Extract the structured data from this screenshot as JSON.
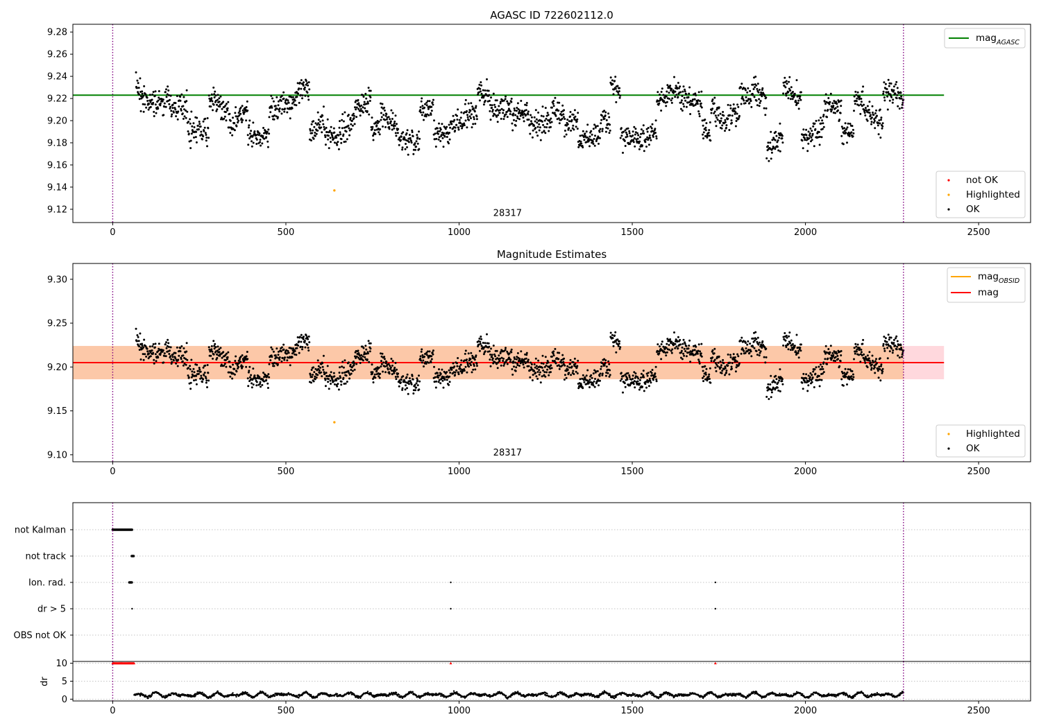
{
  "figure": {
    "background": "#ffffff"
  },
  "colors": {
    "ok": "#000000",
    "highlighted": "#ffa500",
    "not_ok": "#ff0000",
    "agasc_line": "#008000",
    "mag_line": "#ff0000",
    "obsid_line": "#ffa500",
    "band_outer": "#ffd8dd",
    "band_inner": "#fcc8a8",
    "vline": "#800080",
    "grid": "#b0b0b0"
  },
  "chart_data": [
    {
      "id": "agasc",
      "type": "scatter",
      "title": "AGASC ID 722602112.0",
      "xlim": [
        -115,
        2650
      ],
      "ylim": [
        9.108,
        9.287
      ],
      "xticks": [
        0,
        500,
        1000,
        1500,
        2000,
        2500
      ],
      "yticks": [
        "9.12",
        "9.14",
        "9.16",
        "9.18",
        "9.20",
        "9.22",
        "9.24",
        "9.26",
        "9.28"
      ],
      "obsid_label": {
        "text": "28317",
        "x": 1140,
        "y": 9.114
      },
      "vlines": [
        0,
        2283
      ],
      "hline": {
        "name": "mag_AGASC",
        "y": 9.223,
        "x_range": [
          -115,
          2400
        ]
      },
      "ok_series": {
        "name": "OK",
        "x_range": [
          67,
          2283
        ],
        "count": 2050,
        "mean": 9.204
      },
      "highlighted": [
        {
          "x": 640,
          "y": 9.137
        }
      ],
      "not_ok": [],
      "legend_lines": [
        {
          "label": "mag",
          "sub": "AGASC",
          "color": "#008000"
        }
      ],
      "legend_points": [
        {
          "label": "not OK",
          "color": "#ff0000"
        },
        {
          "label": "Highlighted",
          "color": "#ffa500"
        },
        {
          "label": "OK",
          "color": "#000000"
        }
      ]
    },
    {
      "id": "estimates",
      "type": "scatter",
      "title": "Magnitude Estimates",
      "xlim": [
        -115,
        2650
      ],
      "ylim": [
        9.092,
        9.318
      ],
      "xticks": [
        0,
        500,
        1000,
        1500,
        2000,
        2500
      ],
      "yticks": [
        "9.10",
        "9.15",
        "9.20",
        "9.25",
        "9.30"
      ],
      "obsid_label": {
        "text": "28317",
        "x": 1140,
        "y": 9.099
      },
      "vlines": [
        0,
        2283
      ],
      "mag": {
        "name": "mag",
        "y": 9.205
      },
      "band_outer": [
        9.186,
        9.224
      ],
      "band_inner": [
        9.186,
        9.224
      ],
      "band_x_range": [
        -115,
        2400
      ],
      "highlighted": [
        {
          "x": 640,
          "y": 9.137
        }
      ],
      "legend_lines": [
        {
          "label": "mag",
          "sub": "OBSID",
          "color": "#ffa500"
        },
        {
          "label": "mag",
          "sub": "",
          "color": "#ff0000"
        }
      ],
      "legend_points": [
        {
          "label": "Highlighted",
          "color": "#ffa500"
        },
        {
          "label": "OK",
          "color": "#000000"
        }
      ]
    },
    {
      "id": "flags",
      "type": "scatter",
      "xlim": [
        -115,
        2650
      ],
      "categories": [
        "not Kalman",
        "not track",
        "Ion. rad.",
        "dr > 5",
        "OBS not OK"
      ],
      "vlines": [
        0,
        2283
      ],
      "points": {
        "not Kalman": {
          "x_ranges": [
            [
              0,
              56
            ]
          ],
          "x": []
        },
        "not track": {
          "x_ranges": [
            [
              55,
              62
            ]
          ],
          "x": []
        },
        "Ion. rad.": {
          "x_ranges": [
            [
              48,
              56
            ]
          ],
          "x": [
            976,
            1740
          ]
        },
        "dr > 5": {
          "x_ranges": [],
          "x": [
            56,
            976,
            1740
          ]
        },
        "OBS not OK": {
          "x_ranges": [],
          "x": []
        }
      }
    },
    {
      "id": "dr",
      "type": "scatter",
      "ylabel": "dr",
      "xlim": [
        -115,
        2650
      ],
      "ylim": [
        -0.5,
        10.5
      ],
      "xticks": [
        0,
        500,
        1000,
        1500,
        2000,
        2500
      ],
      "yticks": [
        "0",
        "5",
        "10"
      ],
      "vlines": [
        0,
        2283
      ],
      "capped_value": 10,
      "capped_points": {
        "x_ranges": [
          [
            0,
            62
          ]
        ],
        "x": [
          976,
          1740
        ]
      },
      "ok_series": {
        "x_range": [
          62,
          2283
        ],
        "typical": [
          0.2,
          2.5
        ]
      }
    }
  ]
}
